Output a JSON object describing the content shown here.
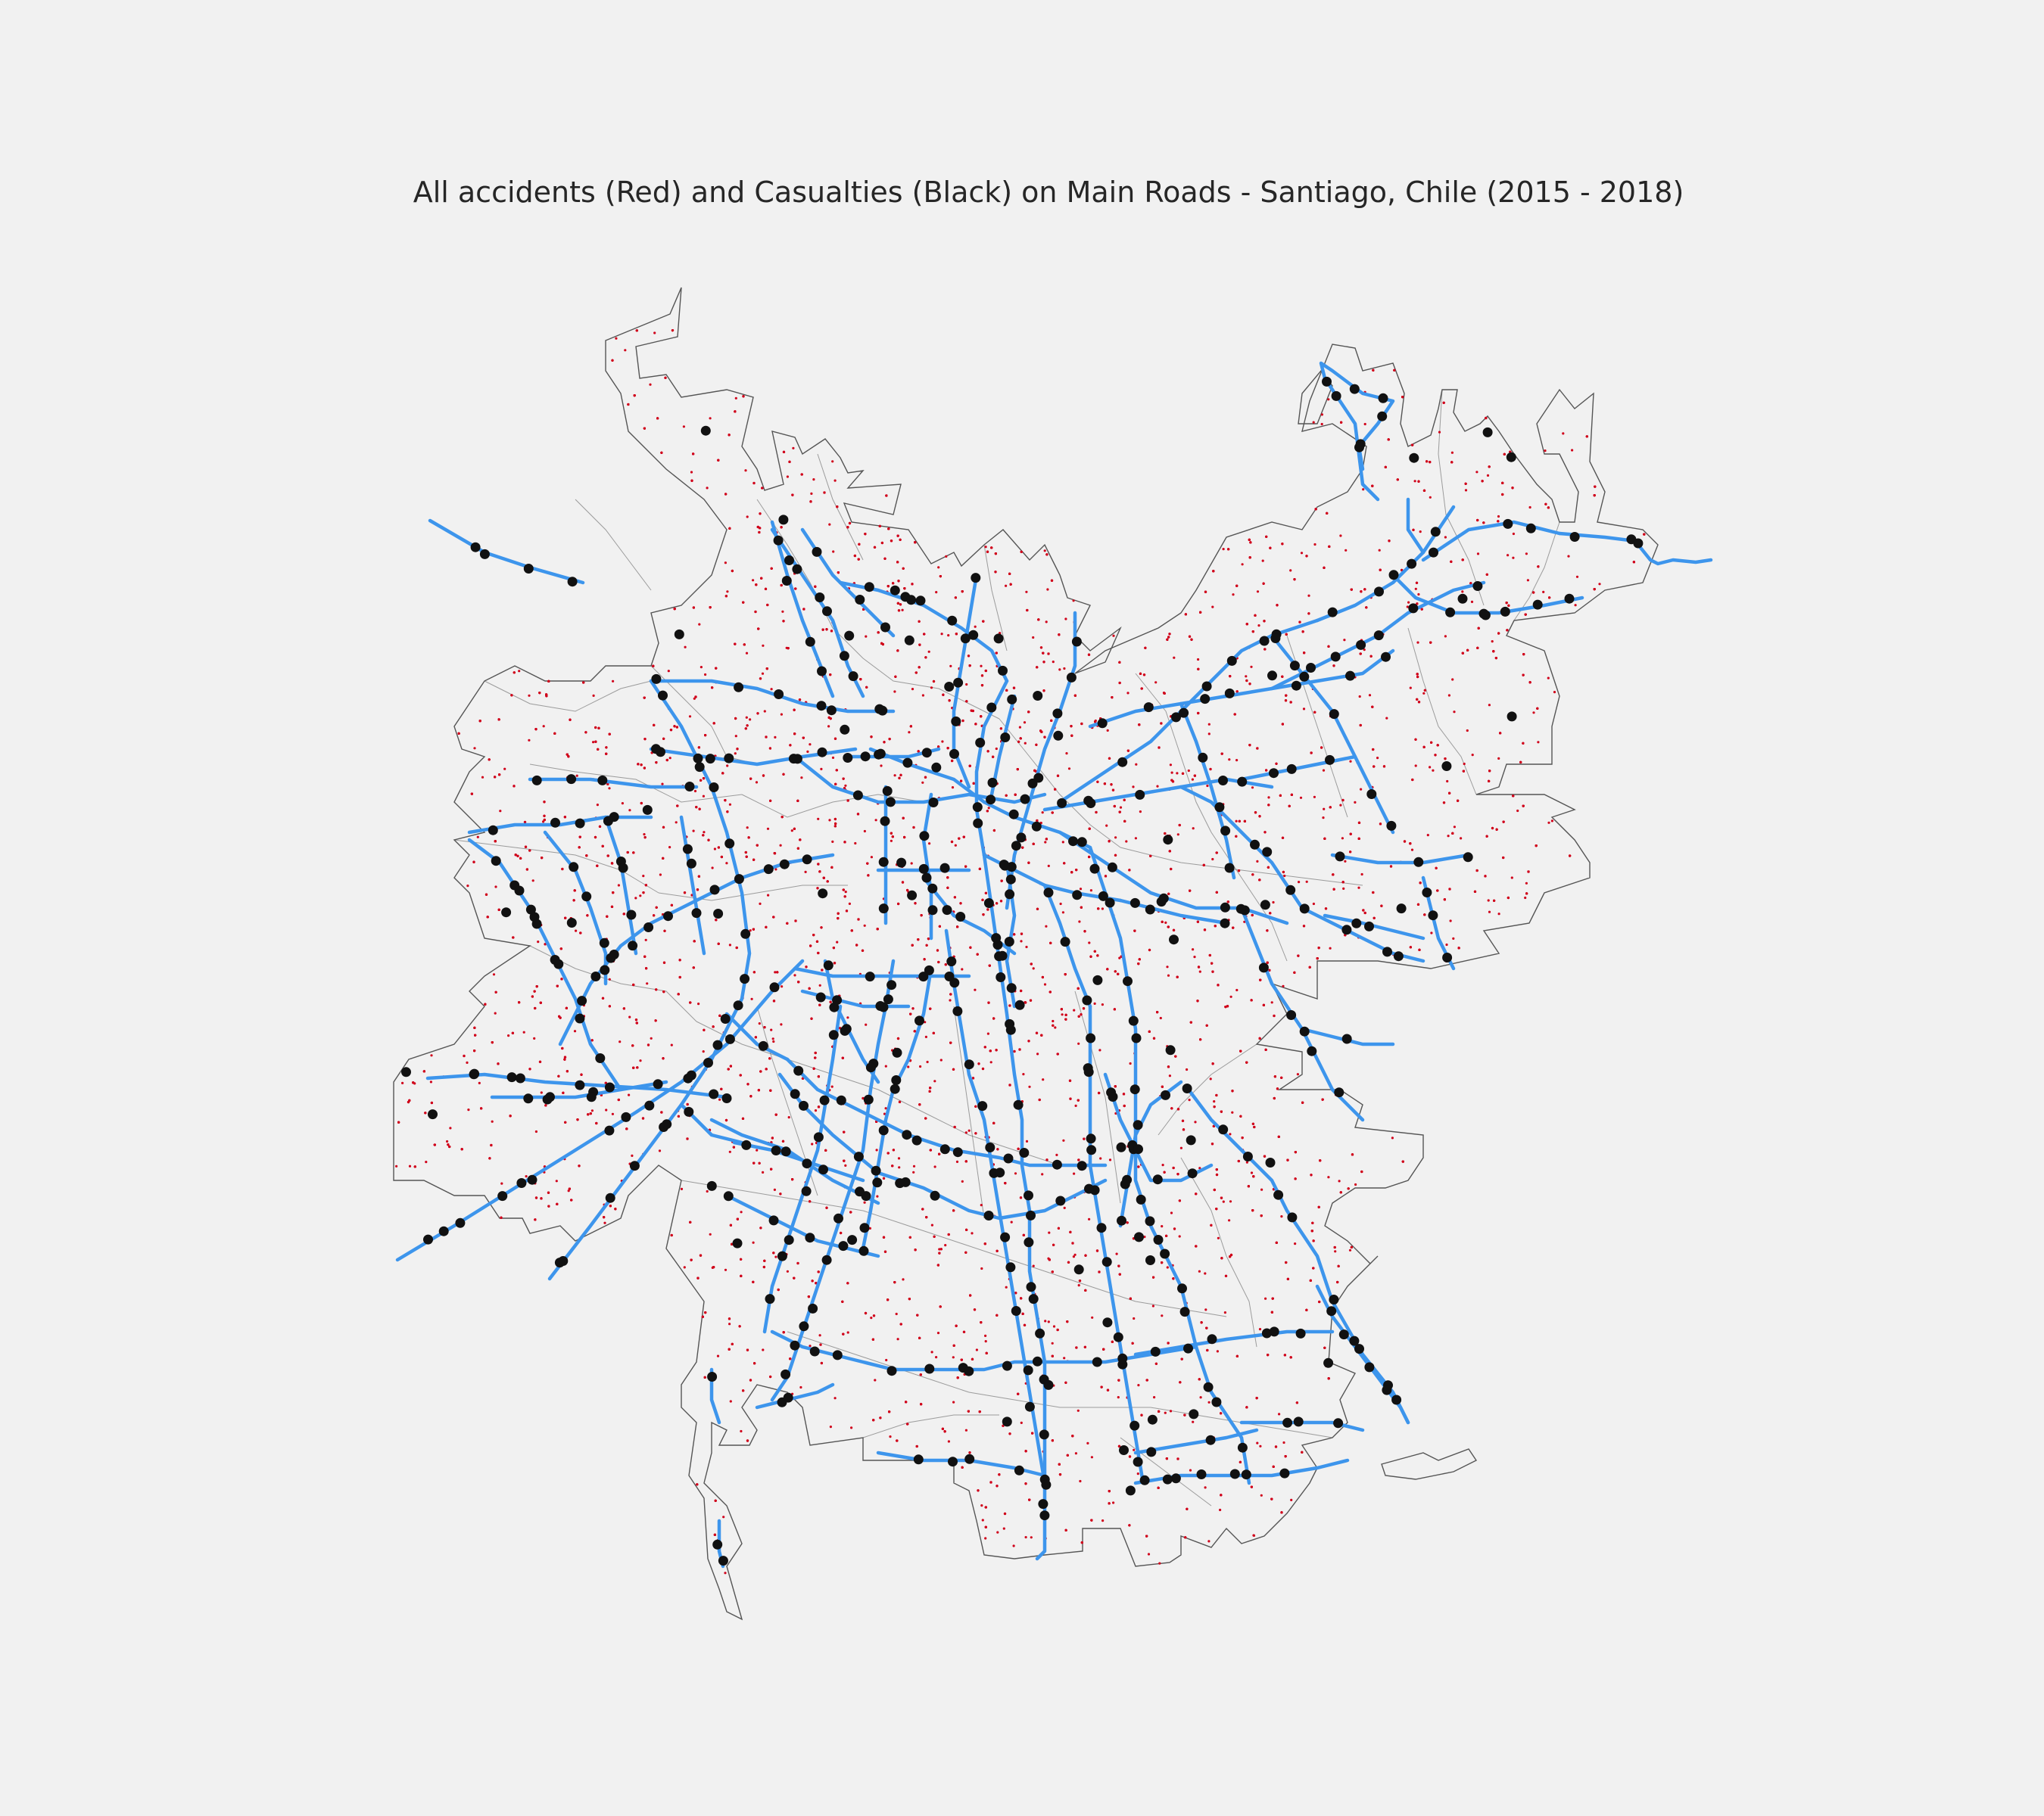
{
  "map": {
    "title": "All accidents (Red) and Casualties (Black) on Main Roads - Santiago, Chile (2015 - 2018)"
  },
  "colors": {
    "background": "#f1f1f1",
    "boundary": "#555555",
    "road": "#3d95ec",
    "accident": "#d0021b",
    "casualty": "#111111"
  },
  "chart_data": {
    "type": "scatter",
    "title": "All accidents (Red) and Casualties (Black) on Main Roads - Santiago, Chile (2015 - 2018)",
    "layers": [
      "commune-boundaries",
      "main-roads",
      "accidents",
      "casualties"
    ],
    "grid": false,
    "axes_visible": false
  }
}
